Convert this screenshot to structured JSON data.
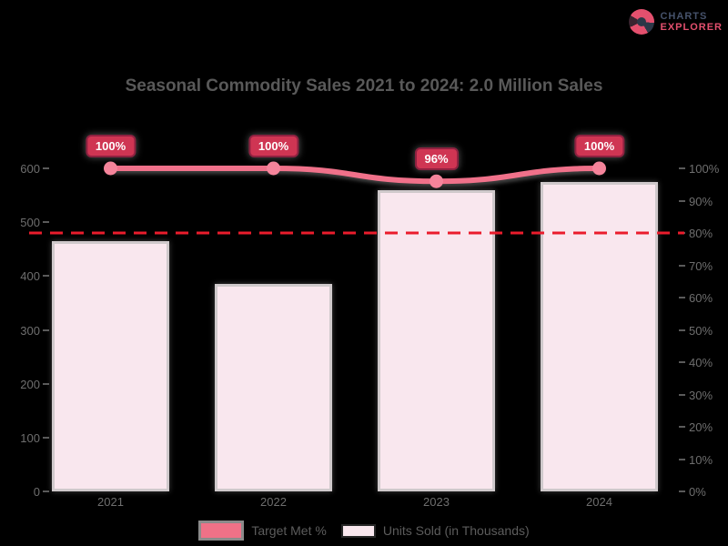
{
  "logo": {
    "line1": "CHARTS",
    "line2": "EXPLORER"
  },
  "title": "Seasonal Commodity Sales 2021 to 2024: 2.0 Million Sales",
  "chart_data": {
    "type": "bar+line combo",
    "categories": [
      "2021",
      "2022",
      "2023",
      "2024"
    ],
    "series": [
      {
        "name": "Units Sold (in Thousands)",
        "type": "bar",
        "axis": "left",
        "values": [
          465,
          385,
          560,
          575
        ],
        "fill_color": "#f9e7ee",
        "border_color": "#cfc9cb"
      },
      {
        "name": "Target Met %",
        "type": "line",
        "axis": "right",
        "values": [
          100,
          100,
          96,
          100
        ],
        "point_labels": [
          "100%",
          "100%",
          "96%",
          "100%"
        ],
        "line_color": "#f0718a",
        "marker_color": "#f5849b",
        "label_box_color": "#cf3553",
        "label_box_border": "#8e2140"
      }
    ],
    "left_axis": {
      "min": 0,
      "max": 600,
      "step": 100,
      "tick_labels": [
        "0",
        "100",
        "200",
        "300",
        "400",
        "500",
        "600"
      ]
    },
    "right_axis": {
      "min": 0,
      "max": 100,
      "step": 10,
      "tick_labels": [
        "0%",
        "10%",
        "20%",
        "30%",
        "40%",
        "50%",
        "60%",
        "70%",
        "80%",
        "90%",
        "100%"
      ]
    },
    "target_line": {
      "value": 80,
      "color": "#ea1c2c",
      "style": "dashed"
    },
    "legend": [
      {
        "label": "Target Met %",
        "swatch": "line"
      },
      {
        "label": "Units Sold (in Thousands)",
        "swatch": "bar"
      }
    ],
    "grid": false,
    "background": "#000000",
    "legend_position": "bottom"
  }
}
